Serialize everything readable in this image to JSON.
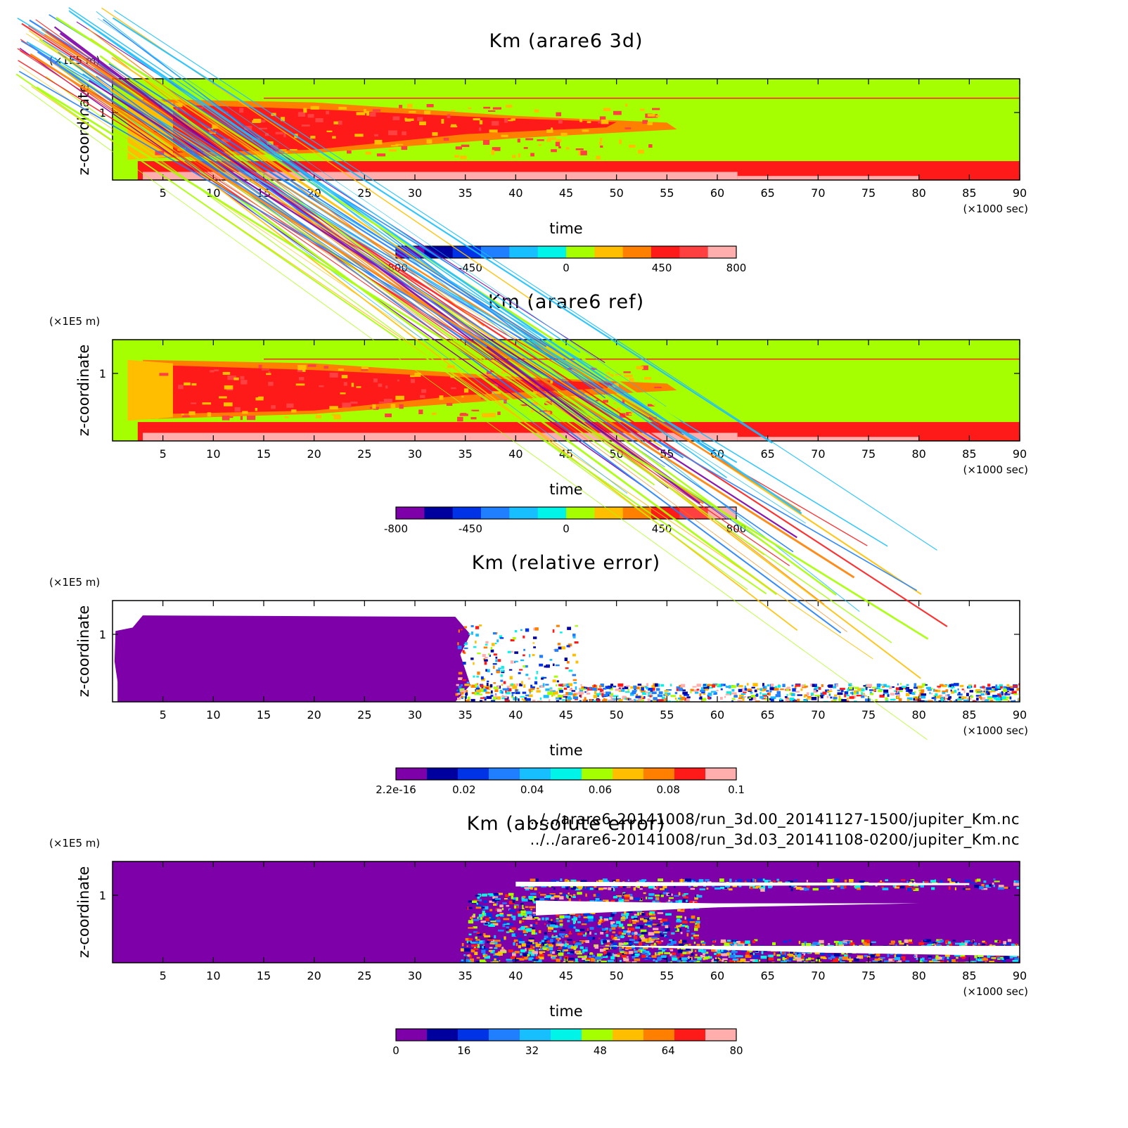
{
  "chart_data": [
    {
      "type": "heatmap",
      "title": "Km (arare6 3d)",
      "xlabel": "time",
      "ylabel": "z-coordinate",
      "x_unit": "(×1000 sec)",
      "y_unit": "(×1E5 m)",
      "x_ticks": [
        5,
        10,
        15,
        20,
        25,
        30,
        35,
        40,
        45,
        50,
        55,
        60,
        65,
        70,
        75,
        80,
        85,
        90
      ],
      "y_ticks": [
        1
      ],
      "xlim": [
        0,
        90
      ],
      "ylim": [
        0,
        1.5
      ],
      "colorbar": {
        "labels": [
          "-800",
          "-450",
          "0",
          "450",
          "800"
        ],
        "label_values": [
          -800,
          -450,
          0,
          450,
          800
        ],
        "range": [
          -800,
          800
        ],
        "colors": [
          "#7d00a8",
          "#00009e",
          "#0033e6",
          "#1f7fff",
          "#17bfff",
          "#00f5e8",
          "#a6ff00",
          "#ffbf00",
          "#ff7f00",
          "#ff1a1a",
          "#ff4040",
          "#ffadad"
        ]
      }
    },
    {
      "type": "heatmap",
      "title": "Km (arare6 ref)",
      "xlabel": "time",
      "ylabel": "z-coordinate",
      "x_unit": "(×1000 sec)",
      "y_unit": "(×1E5 m)",
      "x_ticks": [
        5,
        10,
        15,
        20,
        25,
        30,
        35,
        40,
        45,
        50,
        55,
        60,
        65,
        70,
        75,
        80,
        85,
        90
      ],
      "y_ticks": [
        1
      ],
      "xlim": [
        0,
        90
      ],
      "ylim": [
        0,
        1.5
      ],
      "colorbar": {
        "labels": [
          "-800",
          "-450",
          "0",
          "450",
          "800"
        ],
        "label_values": [
          -800,
          -450,
          0,
          450,
          800
        ],
        "range": [
          -800,
          800
        ],
        "colors": [
          "#7d00a8",
          "#00009e",
          "#0033e6",
          "#1f7fff",
          "#17bfff",
          "#00f5e8",
          "#a6ff00",
          "#ffbf00",
          "#ff7f00",
          "#ff1a1a",
          "#ff4040",
          "#ffadad"
        ]
      }
    },
    {
      "type": "heatmap",
      "title": "Km (relative error)",
      "xlabel": "time",
      "ylabel": "z-coordinate",
      "x_unit": "(×1000 sec)",
      "y_unit": "(×1E5 m)",
      "x_ticks": [
        5,
        10,
        15,
        20,
        25,
        30,
        35,
        40,
        45,
        50,
        55,
        60,
        65,
        70,
        75,
        80,
        85,
        90
      ],
      "y_ticks": [
        1
      ],
      "xlim": [
        0,
        90
      ],
      "ylim": [
        0,
        1.5
      ],
      "colorbar": {
        "labels": [
          "2.2e-16",
          "0.02",
          "0.04",
          "0.06",
          "0.08",
          "0.1"
        ],
        "label_values": [
          0,
          0.02,
          0.04,
          0.06,
          0.08,
          0.1
        ],
        "range": [
          0,
          0.1
        ],
        "colors": [
          "#7d00a8",
          "#00009e",
          "#0033e6",
          "#1f7fff",
          "#17bfff",
          "#00f5e8",
          "#a6ff00",
          "#ffbf00",
          "#ff7f00",
          "#ff1a1a",
          "#ffadad"
        ]
      }
    },
    {
      "type": "heatmap",
      "title": "Km (absolute error)",
      "xlabel": "time",
      "ylabel": "z-coordinate",
      "x_unit": "(×1000 sec)",
      "y_unit": "(×1E5 m)",
      "x_ticks": [
        5,
        10,
        15,
        20,
        25,
        30,
        35,
        40,
        45,
        50,
        55,
        60,
        65,
        70,
        75,
        80,
        85,
        90
      ],
      "y_ticks": [
        1
      ],
      "xlim": [
        0,
        90
      ],
      "ylim": [
        0,
        1.5
      ],
      "colorbar": {
        "labels": [
          "0",
          "16",
          "32",
          "48",
          "64",
          "80"
        ],
        "label_values": [
          0,
          16,
          32,
          48,
          64,
          80
        ],
        "range": [
          0,
          80
        ],
        "colors": [
          "#7d00a8",
          "#00009e",
          "#0033e6",
          "#1f7fff",
          "#17bfff",
          "#00f5e8",
          "#a6ff00",
          "#ffbf00",
          "#ff7f00",
          "#ff1a1a",
          "#ffadad"
        ]
      }
    }
  ],
  "files": [
    "../../arare6-20141008/run_3d.00_20141127-1500/jupiter_Km.nc",
    "../../arare6-20141008/run_3d.03_20141108-0200/jupiter_Km.nc"
  ]
}
